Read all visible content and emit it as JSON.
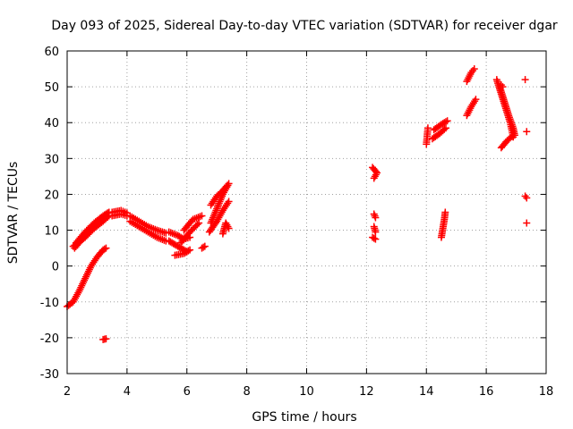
{
  "chart_data": {
    "type": "scatter",
    "title": "Day 093 of 2025, Sidereal Day-to-day VTEC variation (SDTVAR) for receiver dgar",
    "xlabel": "GPS time / hours",
    "ylabel": "SDTVAR / TECUs",
    "xlim": [
      2,
      18
    ],
    "ylim": [
      -30,
      60
    ],
    "x_ticks": [
      2,
      4,
      6,
      8,
      10,
      12,
      14,
      16,
      18
    ],
    "y_ticks": [
      -30,
      -20,
      -10,
      0,
      10,
      20,
      30,
      40,
      50,
      60
    ],
    "x_tick_labels": [
      "2",
      "4",
      "6",
      "8",
      "10",
      "12",
      "14",
      "16",
      "18"
    ],
    "y_tick_labels": [
      "-30",
      "-20",
      "-10",
      "0",
      "10",
      "20",
      "30",
      "40",
      "50",
      "60"
    ],
    "grid": true,
    "marker": "+",
    "marker_color": "#ff0000",
    "series": [
      {
        "segments": [
          [
            [
              2.0,
              -11.3
            ],
            [
              2.2,
              -10.0
            ],
            [
              2.4,
              -7.0
            ],
            [
              2.6,
              -3.5
            ],
            [
              2.8,
              0.0
            ],
            [
              3.0,
              2.5
            ],
            [
              3.2,
              4.5
            ],
            [
              3.3,
              5.0
            ]
          ],
          [
            [
              2.25,
              5.0
            ],
            [
              2.5,
              7.5
            ],
            [
              2.8,
              10.5
            ],
            [
              3.1,
              13.0
            ],
            [
              3.35,
              14.8
            ]
          ],
          [
            [
              2.3,
              6.5
            ],
            [
              2.6,
              9.5
            ],
            [
              2.9,
              12.0
            ],
            [
              3.2,
              14.0
            ],
            [
              3.4,
              15.0
            ]
          ],
          [
            [
              2.2,
              5.5
            ],
            [
              2.6,
              8.0
            ],
            [
              2.9,
              10.5
            ],
            [
              3.2,
              12.5
            ],
            [
              3.4,
              14.0
            ]
          ],
          [
            [
              3.2,
              -20.5
            ],
            [
              3.3,
              -20.3
            ]
          ],
          [
            [
              3.5,
              15.0
            ],
            [
              3.8,
              15.5
            ],
            [
              4.0,
              14.8
            ]
          ],
          [
            [
              3.5,
              14.0
            ],
            [
              3.8,
              14.5
            ],
            [
              4.0,
              14.0
            ]
          ],
          [
            [
              4.1,
              14.0
            ],
            [
              4.4,
              12.5
            ],
            [
              4.7,
              11.0
            ],
            [
              5.0,
              10.0
            ],
            [
              5.3,
              9.2
            ]
          ],
          [
            [
              4.1,
              12.5
            ],
            [
              4.4,
              11.0
            ],
            [
              4.7,
              9.5
            ],
            [
              5.0,
              8.0
            ],
            [
              5.3,
              7.0
            ]
          ],
          [
            [
              5.4,
              9.5
            ],
            [
              5.7,
              8.5
            ],
            [
              5.9,
              7.5
            ],
            [
              6.1,
              8.0
            ]
          ],
          [
            [
              5.4,
              7.0
            ],
            [
              5.6,
              6.0
            ],
            [
              5.8,
              5.0
            ],
            [
              6.0,
              4.0
            ]
          ],
          [
            [
              5.6,
              3.0
            ],
            [
              5.9,
              3.5
            ],
            [
              6.1,
              4.5
            ]
          ],
          [
            [
              5.9,
              10.0
            ],
            [
              6.2,
              13.0
            ],
            [
              6.5,
              14.0
            ]
          ],
          [
            [
              5.8,
              6.5
            ],
            [
              6.1,
              9.5
            ],
            [
              6.4,
              12.0
            ]
          ],
          [
            [
              6.5,
              5.0
            ],
            [
              6.6,
              5.5
            ]
          ],
          [
            [
              6.8,
              12.0
            ],
            [
              7.0,
              16.0
            ],
            [
              7.2,
              20.0
            ],
            [
              7.4,
              23.0
            ]
          ],
          [
            [
              6.8,
              17.0
            ],
            [
              7.0,
              19.5
            ],
            [
              7.2,
              21.0
            ],
            [
              7.35,
              22.5
            ]
          ],
          [
            [
              6.75,
              9.5
            ],
            [
              7.0,
              12.5
            ],
            [
              7.2,
              15.5
            ],
            [
              7.4,
              18.0
            ]
          ],
          [
            [
              7.2,
              9.0
            ],
            [
              7.3,
              12.0
            ],
            [
              7.4,
              10.5
            ]
          ],
          [
            [
              12.2,
              27.5
            ],
            [
              12.35,
              26.0
            ],
            [
              12.25,
              24.5
            ]
          ],
          [
            [
              12.25,
              14.5
            ],
            [
              12.3,
              13.5
            ]
          ],
          [
            [
              12.25,
              11.0
            ],
            [
              12.3,
              9.5
            ]
          ],
          [
            [
              12.2,
              8.0
            ],
            [
              12.3,
              7.5
            ]
          ],
          [
            [
              14.0,
              34.0
            ],
            [
              14.05,
              38.5
            ]
          ],
          [
            [
              14.25,
              38.0
            ],
            [
              14.5,
              39.5
            ],
            [
              14.7,
              40.5
            ]
          ],
          [
            [
              14.2,
              35.5
            ],
            [
              14.45,
              37.0
            ],
            [
              14.65,
              38.5
            ]
          ],
          [
            [
              14.5,
              8.0
            ],
            [
              14.55,
              10.5
            ],
            [
              14.6,
              13.0
            ],
            [
              14.63,
              15.0
            ]
          ],
          [
            [
              15.35,
              42.0
            ],
            [
              15.5,
              44.5
            ],
            [
              15.65,
              46.5
            ]
          ],
          [
            [
              15.35,
              51.5
            ],
            [
              15.5,
              54.0
            ],
            [
              15.6,
              55.0
            ]
          ],
          [
            [
              16.35,
              52.0
            ],
            [
              16.5,
              48.0
            ],
            [
              16.65,
              44.0
            ],
            [
              16.8,
              40.0
            ],
            [
              16.9,
              36.0
            ]
          ],
          [
            [
              16.45,
              50.0
            ],
            [
              16.6,
              46.0
            ],
            [
              16.75,
              42.0
            ],
            [
              16.9,
              38.5
            ],
            [
              16.95,
              36.5
            ]
          ],
          [
            [
              16.5,
              33.0
            ],
            [
              16.7,
              35.0
            ],
            [
              16.9,
              36.5
            ]
          ],
          [
            [
              16.5,
              50.5
            ],
            [
              16.55,
              50.0
            ]
          ],
          [
            [
              17.3,
              52.0
            ]
          ],
          [
            [
              17.35,
              37.5
            ]
          ],
          [
            [
              17.3,
              19.5
            ],
            [
              17.35,
              19.0
            ]
          ],
          [
            [
              17.35,
              12.0
            ]
          ]
        ]
      }
    ]
  }
}
